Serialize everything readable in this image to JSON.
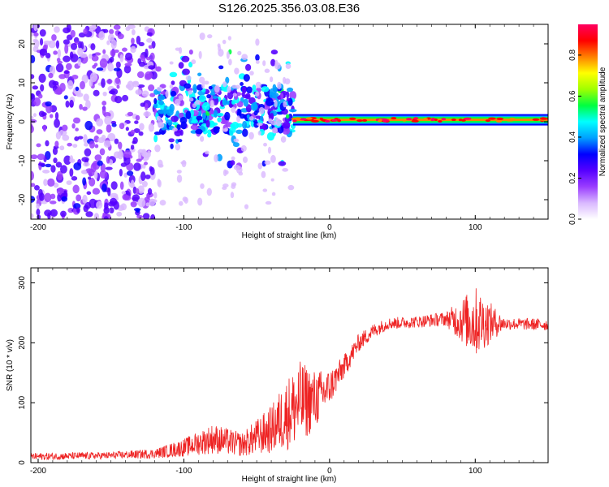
{
  "title": "S126.2025.356.03.08.E36",
  "chart_data": [
    {
      "type": "heatmap",
      "name": "spectrogram",
      "xlabel": "Height of straight line (km)",
      "ylabel": "Frequency (Hz)",
      "xlim": [
        -205,
        150
      ],
      "ylim": [
        -25,
        25
      ],
      "xticks": [
        -200,
        -100,
        0,
        100
      ],
      "xtick_labels": [
        "-200",
        "-100",
        "0",
        "100"
      ],
      "yticks": [
        -20,
        -10,
        0,
        10,
        20
      ],
      "ytick_labels": [
        "-20",
        "-10",
        "0",
        "10",
        "20"
      ],
      "colorbar": {
        "label": "Normalized spectral amplitude",
        "range": [
          0,
          0.95
        ],
        "ticks": [
          0,
          0.2,
          0.4,
          0.6,
          0.8
        ],
        "tick_labels": [
          "0.0",
          "0.2",
          "0.4",
          "0.6",
          "0.8"
        ],
        "colors": [
          "#ffffff",
          "#d9b8ff",
          "#9a3dff",
          "#5500ff",
          "#0000ff",
          "#00a0ff",
          "#00ffff",
          "#00ff40",
          "#a0ff00",
          "#ffff00",
          "#ff8000",
          "#ff0000",
          "#ff0060"
        ]
      },
      "regions": [
        {
          "x": [
            -205,
            -120
          ],
          "freq_spread": 25,
          "amplitude": 0.15,
          "description": "noise"
        },
        {
          "x": [
            -120,
            -25
          ],
          "freq_center": 3,
          "freq_spread": 6,
          "amplitude": 0.25
        },
        {
          "x": [
            -25,
            150
          ],
          "freq_center": 0.5,
          "freq_spread": 1,
          "amplitude": 0.45
        }
      ]
    },
    {
      "type": "line",
      "name": "snr",
      "xlabel": "Height of straight line (km)",
      "ylabel": "SNR (10 * v/v)",
      "xlim": [
        -205,
        150
      ],
      "ylim": [
        0,
        325
      ],
      "xticks": [
        -200,
        -100,
        0,
        100
      ],
      "xtick_labels": [
        "-200",
        "-100",
        "0",
        "100"
      ],
      "yticks": [
        0,
        100,
        200,
        300
      ],
      "ytick_labels": [
        "0",
        "100",
        "200",
        "300"
      ],
      "color": "#ee2222",
      "trend_x": [
        -205,
        -150,
        -120,
        -100,
        -80,
        -60,
        -40,
        -30,
        -20,
        -10,
        0,
        10,
        20,
        30,
        40,
        60,
        80,
        100,
        120,
        150
      ],
      "trend_y": [
        10,
        12,
        15,
        25,
        40,
        30,
        55,
        80,
        100,
        105,
        125,
        160,
        200,
        220,
        232,
        235,
        240,
        235,
        232,
        230
      ],
      "noise_amp": [
        6,
        6,
        8,
        15,
        25,
        20,
        40,
        60,
        70,
        50,
        30,
        20,
        15,
        12,
        10,
        10,
        12,
        60,
        10,
        10
      ]
    }
  ]
}
